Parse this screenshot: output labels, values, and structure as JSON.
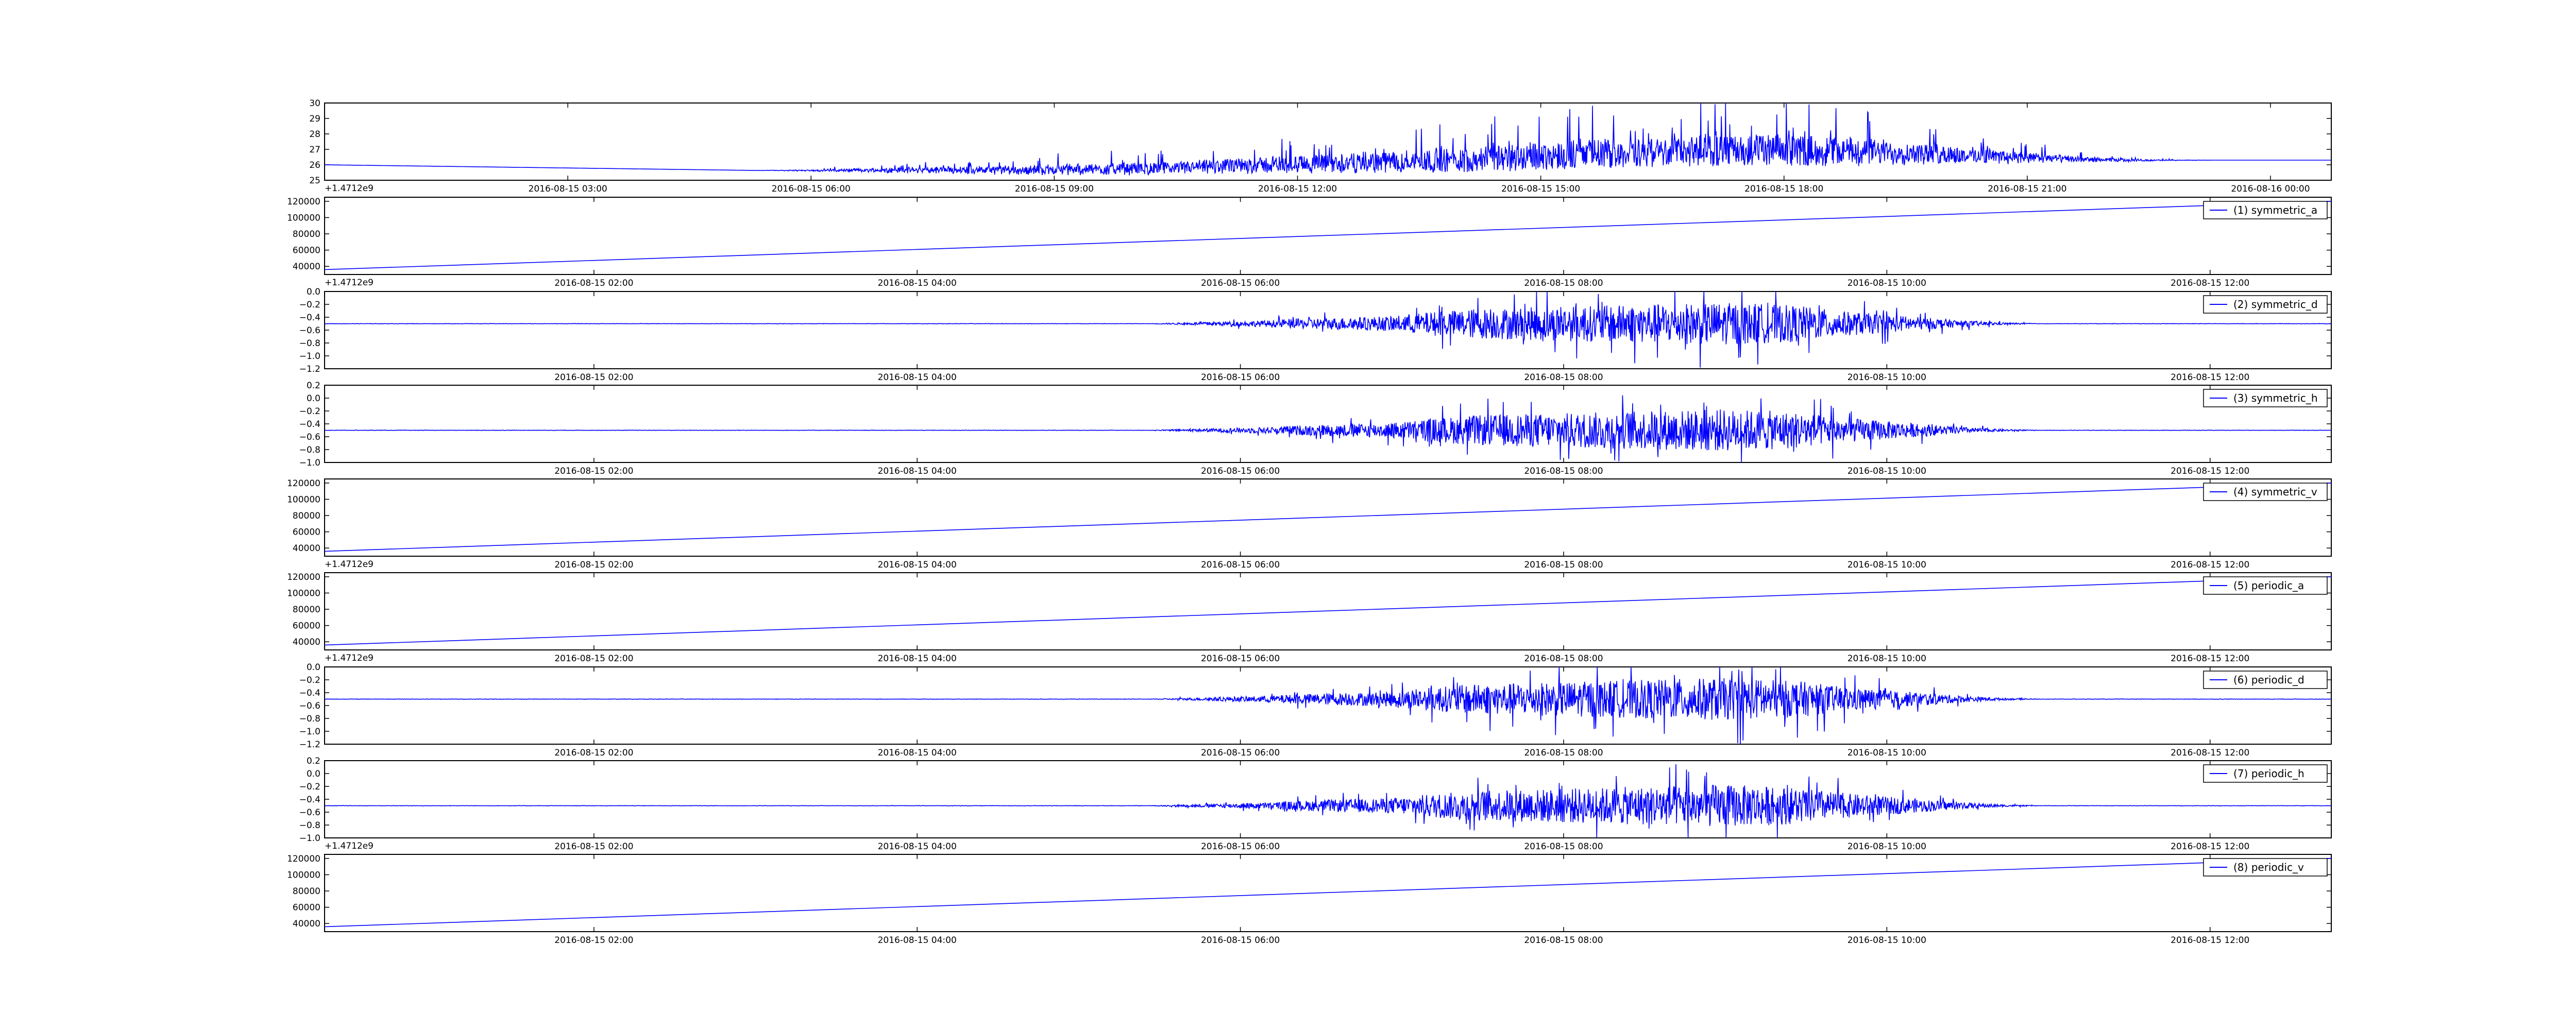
{
  "chart_data": [
    {
      "type": "line",
      "series": [
        {
          "values_note": "",
          "color": "#0000ff"
        }
      ],
      "legend": "",
      "ylim": [
        25,
        30
      ],
      "yticks": [
        "25",
        "26",
        "27",
        "28",
        "29",
        "30"
      ],
      "xticks": [
        "2016-08-15 03:00",
        "2016-08-15 06:00",
        "2016-08-15 09:00",
        "2016-08-15 12:00",
        "2016-08-15 15:00",
        "2016-08-15 18:00",
        "2016-08-15 21:00",
        "2016-08-16 00:00"
      ],
      "x_range": [
        "2016-08-15 00:00",
        "2016-08-16 00:45"
      ],
      "offset": "+1.4712e9",
      "baseline": [
        26.0,
        25.9,
        25.8,
        25.7,
        25.6,
        25.5,
        25.4,
        25.4,
        25.5,
        25.5,
        25.6,
        25.8,
        25.9,
        26.0,
        26.1,
        26.2,
        26.3,
        26.3
      ],
      "activity": [
        0,
        0,
        0,
        0,
        0,
        0,
        0,
        0,
        0.2,
        0.5,
        0.8,
        1.0,
        1.3,
        1.5,
        1.7,
        2.0,
        2.4,
        2.8,
        3.2,
        3.6,
        4.0,
        4.2,
        4.4,
        4.5,
        4.4,
        4.1,
        3.2,
        2.3,
        1.4,
        0.6,
        0.2,
        0,
        0,
        0
      ]
    },
    {
      "type": "line",
      "series": [
        {
          "name": "(1) symmetric_a",
          "color": "#0000ff"
        }
      ],
      "legend": "top-right",
      "ylim": [
        30000,
        125000
      ],
      "yticks": [
        "40000",
        "60000",
        "80000",
        "100000",
        "120000"
      ],
      "xticks": [
        "2016-08-15 02:00",
        "2016-08-15 04:00",
        "2016-08-15 06:00",
        "2016-08-15 08:00",
        "2016-08-15 10:00",
        "2016-08-15 12:00"
      ],
      "x_range": [
        "2016-08-15 00:20",
        "2016-08-15 12:45"
      ],
      "offset": "+1.4712e9",
      "line_y": [
        36000,
        120000
      ]
    },
    {
      "type": "line",
      "series": [
        {
          "name": "(2) symmetric_d",
          "color": "#0000ff"
        }
      ],
      "legend": "top-right",
      "ylim": [
        -1.2,
        0.0
      ],
      "yticks": [
        "−1.2",
        "−1.0",
        "−0.8",
        "−0.6",
        "−0.4",
        "−0.2",
        "0.0"
      ],
      "xticks": [
        "2016-08-15 02:00",
        "2016-08-15 04:00",
        "2016-08-15 06:00",
        "2016-08-15 08:00",
        "2016-08-15 10:00",
        "2016-08-15 12:00"
      ],
      "x_range": [
        "2016-08-15 00:20",
        "2016-08-15 12:45"
      ],
      "center": -0.5,
      "amp_scale": 0.6
    },
    {
      "type": "line",
      "series": [
        {
          "name": "(3) symmetric_h",
          "color": "#0000ff"
        }
      ],
      "legend": "top-right",
      "ylim": [
        -1.0,
        0.2
      ],
      "yticks": [
        "−1.0",
        "−0.8",
        "−0.6",
        "−0.4",
        "−0.2",
        "0.0",
        "0.2"
      ],
      "xticks": [
        "2016-08-15 02:00",
        "2016-08-15 04:00",
        "2016-08-15 06:00",
        "2016-08-15 08:00",
        "2016-08-15 10:00",
        "2016-08-15 12:00"
      ],
      "x_range": [
        "2016-08-15 00:20",
        "2016-08-15 12:45"
      ],
      "center": -0.5,
      "amp_scale": 0.6
    },
    {
      "type": "line",
      "series": [
        {
          "name": "(4) symmetric_v",
          "color": "#0000ff"
        }
      ],
      "legend": "top-right",
      "ylim": [
        30000,
        125000
      ],
      "yticks": [
        "40000",
        "60000",
        "80000",
        "100000",
        "120000"
      ],
      "xticks": [
        "2016-08-15 02:00",
        "2016-08-15 04:00",
        "2016-08-15 06:00",
        "2016-08-15 08:00",
        "2016-08-15 10:00",
        "2016-08-15 12:00"
      ],
      "x_range": [
        "2016-08-15 00:20",
        "2016-08-15 12:45"
      ],
      "offset": "+1.4712e9",
      "line_y": [
        36000,
        120000
      ]
    },
    {
      "type": "line",
      "series": [
        {
          "name": "(5) periodic_a",
          "color": "#0000ff"
        }
      ],
      "legend": "top-right",
      "ylim": [
        30000,
        125000
      ],
      "yticks": [
        "40000",
        "60000",
        "80000",
        "100000",
        "120000"
      ],
      "xticks": [
        "2016-08-15 02:00",
        "2016-08-15 04:00",
        "2016-08-15 06:00",
        "2016-08-15 08:00",
        "2016-08-15 10:00",
        "2016-08-15 12:00"
      ],
      "x_range": [
        "2016-08-15 00:20",
        "2016-08-15 12:45"
      ],
      "offset": "+1.4712e9",
      "line_y": [
        36000,
        120000
      ]
    },
    {
      "type": "line",
      "series": [
        {
          "name": "(6) periodic_d",
          "color": "#0000ff"
        }
      ],
      "legend": "top-right",
      "ylim": [
        -1.2,
        0.0
      ],
      "yticks": [
        "−1.2",
        "−1.0",
        "−0.8",
        "−0.6",
        "−0.4",
        "−0.2",
        "0.0"
      ],
      "xticks": [
        "2016-08-15 02:00",
        "2016-08-15 04:00",
        "2016-08-15 06:00",
        "2016-08-15 08:00",
        "2016-08-15 10:00",
        "2016-08-15 12:00"
      ],
      "x_range": [
        "2016-08-15 00:20",
        "2016-08-15 12:45"
      ],
      "center": -0.5,
      "amp_scale": 0.6
    },
    {
      "type": "line",
      "series": [
        {
          "name": "(7) periodic_h",
          "color": "#0000ff"
        }
      ],
      "legend": "top-right",
      "ylim": [
        -1.0,
        0.2
      ],
      "yticks": [
        "−1.0",
        "−0.8",
        "−0.6",
        "−0.4",
        "−0.2",
        "0.0",
        "0.2"
      ],
      "xticks": [
        "2016-08-15 02:00",
        "2016-08-15 04:00",
        "2016-08-15 06:00",
        "2016-08-15 08:00",
        "2016-08-15 10:00",
        "2016-08-15 12:00"
      ],
      "x_range": [
        "2016-08-15 00:20",
        "2016-08-15 12:45"
      ],
      "offset": "+1.4712e9",
      "center": -0.5,
      "amp_scale": 0.6
    },
    {
      "type": "line",
      "series": [
        {
          "name": "(8) periodic_v",
          "color": "#0000ff"
        }
      ],
      "legend": "top-right",
      "ylim": [
        30000,
        125000
      ],
      "yticks": [
        "40000",
        "60000",
        "80000",
        "100000",
        "120000"
      ],
      "xticks": [
        "2016-08-15 02:00",
        "2016-08-15 04:00",
        "2016-08-15 06:00",
        "2016-08-15 08:00",
        "2016-08-15 10:00",
        "2016-08-15 12:00"
      ],
      "x_range": [
        "2016-08-15 00:20",
        "2016-08-15 12:45"
      ],
      "line_y": [
        36000,
        120000
      ]
    }
  ],
  "signal_activity": [
    0,
    0,
    0,
    0,
    0,
    0,
    0,
    0,
    0,
    0,
    0,
    0,
    0,
    0,
    0,
    0,
    0,
    0,
    0,
    0,
    0,
    0.05,
    0.1,
    0.15,
    0.25,
    0.3,
    0.35,
    0.55,
    0.7,
    0.75,
    0.8,
    0.85,
    0.9,
    0.95,
    1.0,
    0.95,
    0.85,
    0.6,
    0.45,
    0.3,
    0.15,
    0.05,
    0,
    0,
    0,
    0,
    0,
    0,
    0,
    0
  ]
}
